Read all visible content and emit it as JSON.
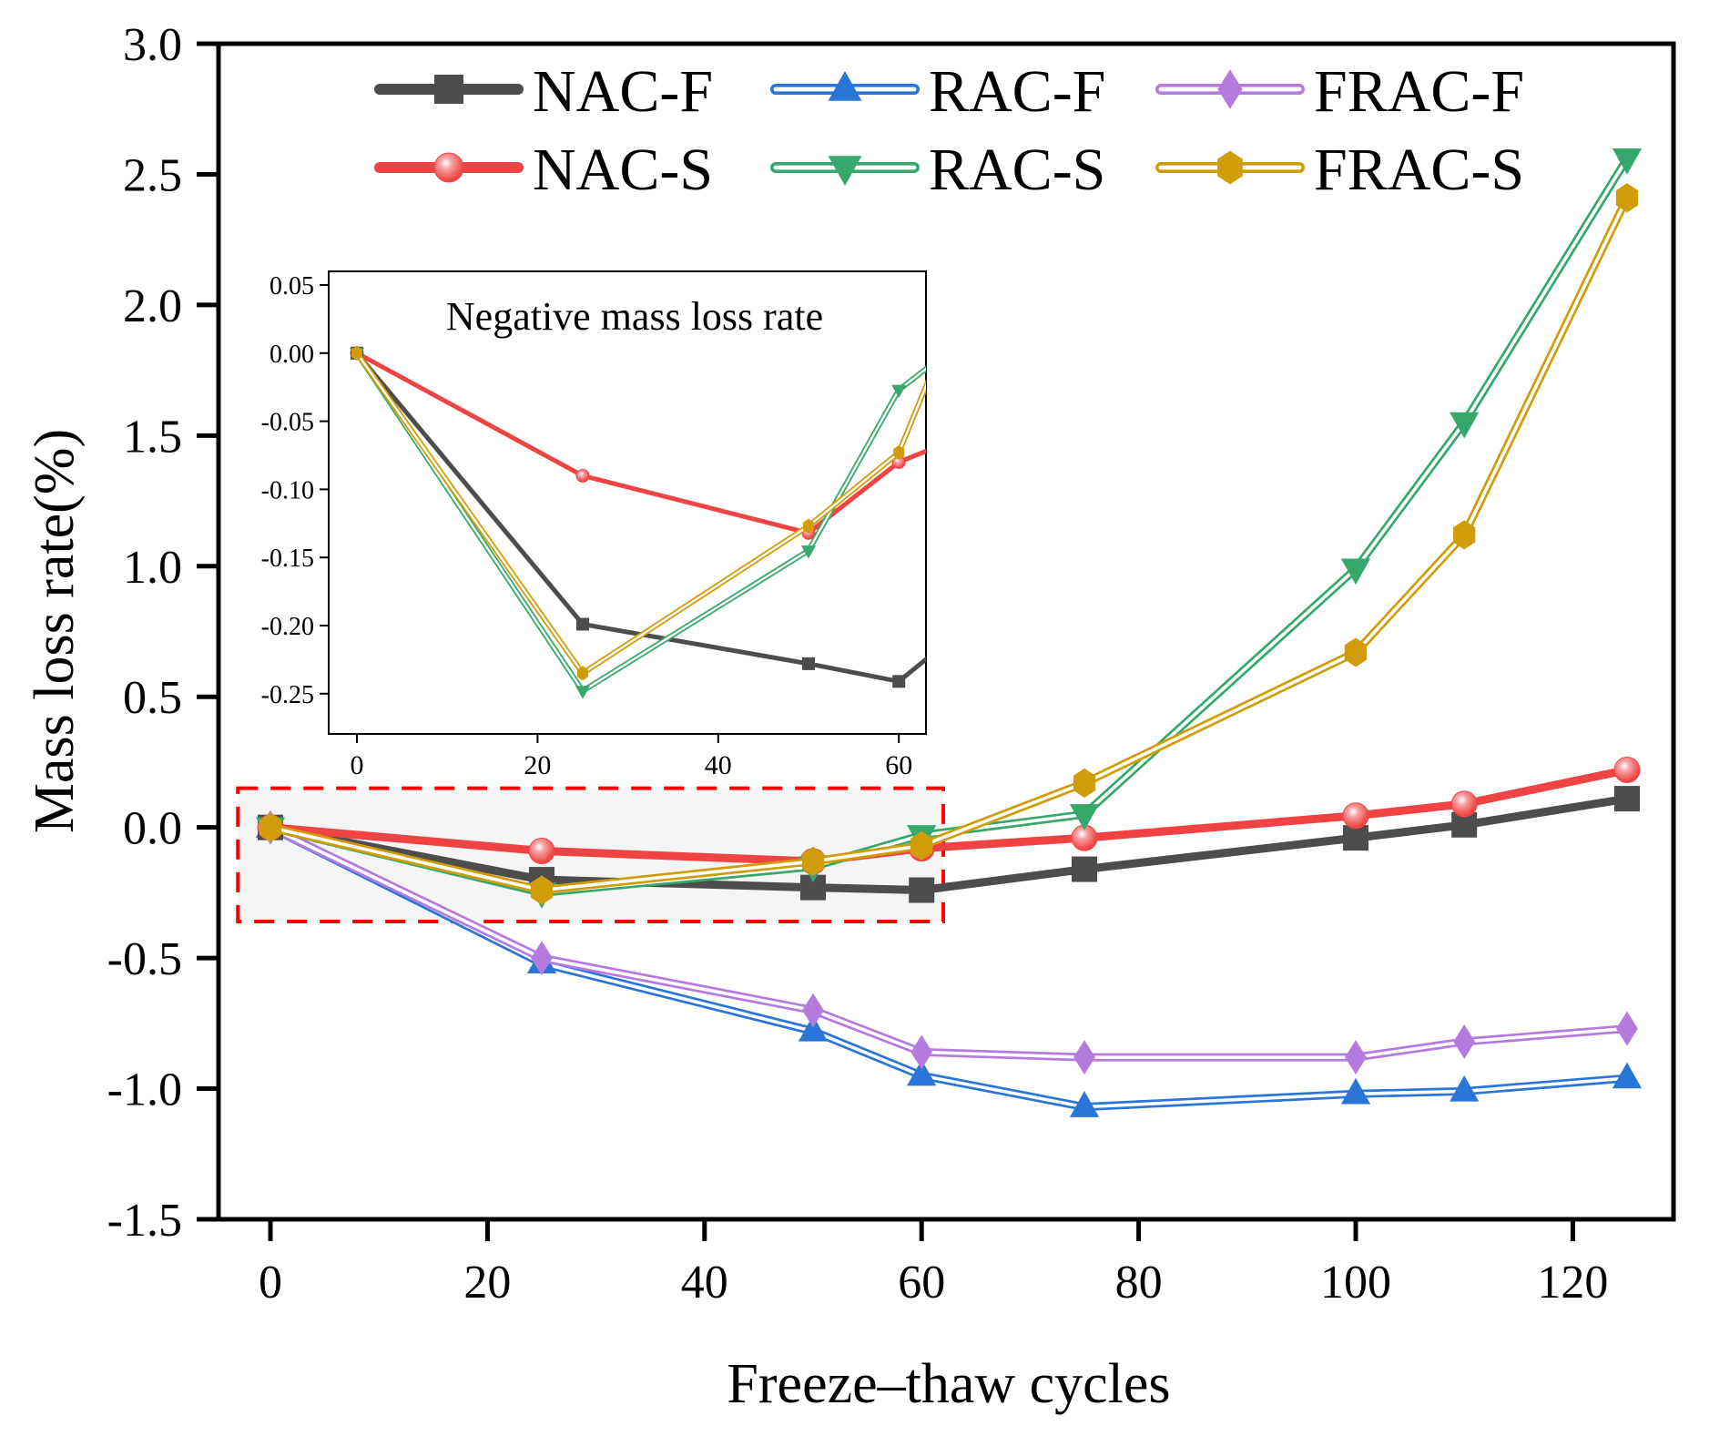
{
  "chart_data": {
    "type": "line",
    "title": "",
    "xlabel": "Freeze–thaw cycles",
    "ylabel": "Mass loss rate(%)",
    "xlim": [
      -5,
      130
    ],
    "ylim": [
      -1.5,
      3.0
    ],
    "xticks": [
      0,
      20,
      40,
      60,
      80,
      100,
      120
    ],
    "xtick_labels": [
      "0",
      "20",
      "40",
      "60",
      "80",
      "100",
      "120"
    ],
    "yticks": [
      -1.5,
      -1.0,
      -0.5,
      0.0,
      0.5,
      1.0,
      1.5,
      2.0,
      2.5,
      3.0
    ],
    "ytick_labels": [
      "-1.5",
      "-1.0",
      "-0.5",
      "0.0",
      "0.5",
      "1.0",
      "1.5",
      "2.0",
      "2.5",
      "3.0"
    ],
    "grid": false,
    "legend_position": "top",
    "x": [
      0,
      25,
      50,
      60,
      75,
      100,
      110,
      125
    ],
    "series": [
      {
        "name": "NAC-F",
        "color": "#4d4d4d",
        "marker": "square",
        "style": "solid",
        "values": [
          0,
          -0.2,
          -0.23,
          -0.24,
          -0.16,
          -0.04,
          0.01,
          0.11
        ]
      },
      {
        "name": "RAC-F",
        "color": "#2a75d8",
        "marker": "triangle-up",
        "style": "double",
        "values": [
          0,
          -0.52,
          -0.78,
          -0.95,
          -1.07,
          -1.02,
          -1.01,
          -0.96
        ]
      },
      {
        "name": "FRAC-F",
        "color": "#b57ade",
        "marker": "diamond",
        "style": "double",
        "values": [
          0,
          -0.5,
          -0.7,
          -0.86,
          -0.88,
          -0.88,
          -0.82,
          -0.77
        ]
      },
      {
        "name": "NAC-S",
        "color": "#f04444",
        "marker": "circle",
        "style": "solid",
        "values": [
          0,
          -0.09,
          -0.13,
          -0.08,
          -0.04,
          0.045,
          0.09,
          0.22
        ]
      },
      {
        "name": "RAC-S",
        "color": "#36a86b",
        "marker": "triangle-down",
        "style": "double",
        "values": [
          0,
          -0.25,
          -0.15,
          -0.03,
          0.05,
          0.99,
          1.55,
          2.56
        ]
      },
      {
        "name": "FRAC-S",
        "color": "#d19c0a",
        "marker": "hexagon",
        "style": "double",
        "values": [
          0,
          -0.24,
          -0.13,
          -0.07,
          0.17,
          0.67,
          1.12,
          2.41
        ]
      }
    ],
    "highlight_region": {
      "x": [
        -3,
        62
      ],
      "y": [
        -0.36,
        0.15
      ],
      "style": "red dashed box"
    },
    "inset": {
      "title": "Negative mass loss rate",
      "xlim": [
        -4,
        63
      ],
      "ylim": [
        -0.28,
        0.06
      ],
      "xticks": [
        0,
        20,
        40,
        60
      ],
      "xtick_labels": [
        "0",
        "20",
        "40",
        "60"
      ],
      "yticks": [
        0.05,
        0.0,
        -0.05,
        -0.1,
        -0.15,
        -0.2,
        -0.25
      ],
      "ytick_labels": [
        "0.05",
        "0.00",
        "-0.05",
        "-0.10",
        "-0.15",
        "-0.20",
        "-0.25"
      ],
      "x": [
        0,
        25,
        50,
        60,
        75
      ],
      "series": [
        {
          "name": "NAC-F",
          "values": [
            0,
            -0.199,
            -0.228,
            -0.241,
            -0.16
          ]
        },
        {
          "name": "NAC-S",
          "values": [
            0,
            -0.09,
            -0.132,
            -0.08,
            -0.04
          ]
        },
        {
          "name": "RAC-S",
          "values": [
            0,
            -0.248,
            -0.145,
            -0.027,
            0.05
          ]
        },
        {
          "name": "FRAC-S",
          "values": [
            0,
            -0.235,
            -0.127,
            -0.073,
            0.17
          ]
        }
      ]
    }
  }
}
